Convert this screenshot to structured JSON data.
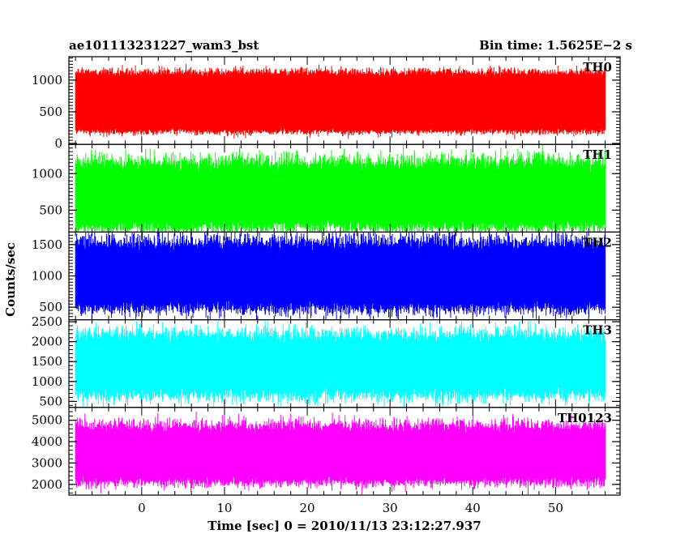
{
  "chart_data": {
    "type": "line",
    "title": "ae101113231227_wam3_bst",
    "subtitle": "Bin time: 1.5625E−2 s",
    "xlabel": "Time [sec] 0 = 2010/11/13 23:12:27.937",
    "ylabel": "Counts/sec",
    "xlim": [
      -8.8,
      57.8
    ],
    "xticks": [
      0,
      10,
      20,
      30,
      40,
      50
    ],
    "xtick_labels": [
      "0",
      "10",
      "20",
      "30",
      "40",
      "50"
    ],
    "data_range_x": [
      -8,
      56
    ],
    "grid": false,
    "series": [
      {
        "name": "TH0",
        "color": "#ff0000",
        "ylim": [
          -15,
          1370
        ],
        "yticks": [
          0,
          500,
          1000
        ],
        "ytick_labels": [
          "0",
          "500",
          "1000"
        ],
        "center": 650,
        "half_width": 560,
        "spread": 60,
        "clip_top": true
      },
      {
        "name": "TH1",
        "color": "#00ff00",
        "ylim": [
          200,
          1400
        ],
        "yticks": [
          500,
          1000
        ],
        "ytick_labels": [
          "500",
          "1000"
        ],
        "center": 700,
        "half_width": 520,
        "spread": 120,
        "clip_top": false
      },
      {
        "name": "TH2",
        "color": "#0000ff",
        "ylim": [
          300,
          1700
        ],
        "yticks": [
          500,
          1000,
          1500
        ],
        "ytick_labels": [
          "500",
          "1000",
          "1500"
        ],
        "center": 1000,
        "half_width": 620,
        "spread": 130,
        "clip_top": true
      },
      {
        "name": "TH3",
        "color": "#00ffff",
        "ylim": [
          350,
          2550
        ],
        "yticks": [
          500,
          1000,
          1500,
          2000,
          2500
        ],
        "ytick_labels": [
          "500",
          "1000",
          "1500",
          "2000",
          "2500"
        ],
        "center": 1400,
        "half_width": 880,
        "spread": 200,
        "clip_top": false
      },
      {
        "name": "TH0123",
        "color": "#ff00ff",
        "ylim": [
          1500,
          5600
        ],
        "yticks": [
          2000,
          3000,
          4000,
          5000
        ],
        "ytick_labels": [
          "2000",
          "3000",
          "4000",
          "5000"
        ],
        "center": 3400,
        "half_width": 1550,
        "spread": 300,
        "clip_top": false
      }
    ]
  }
}
